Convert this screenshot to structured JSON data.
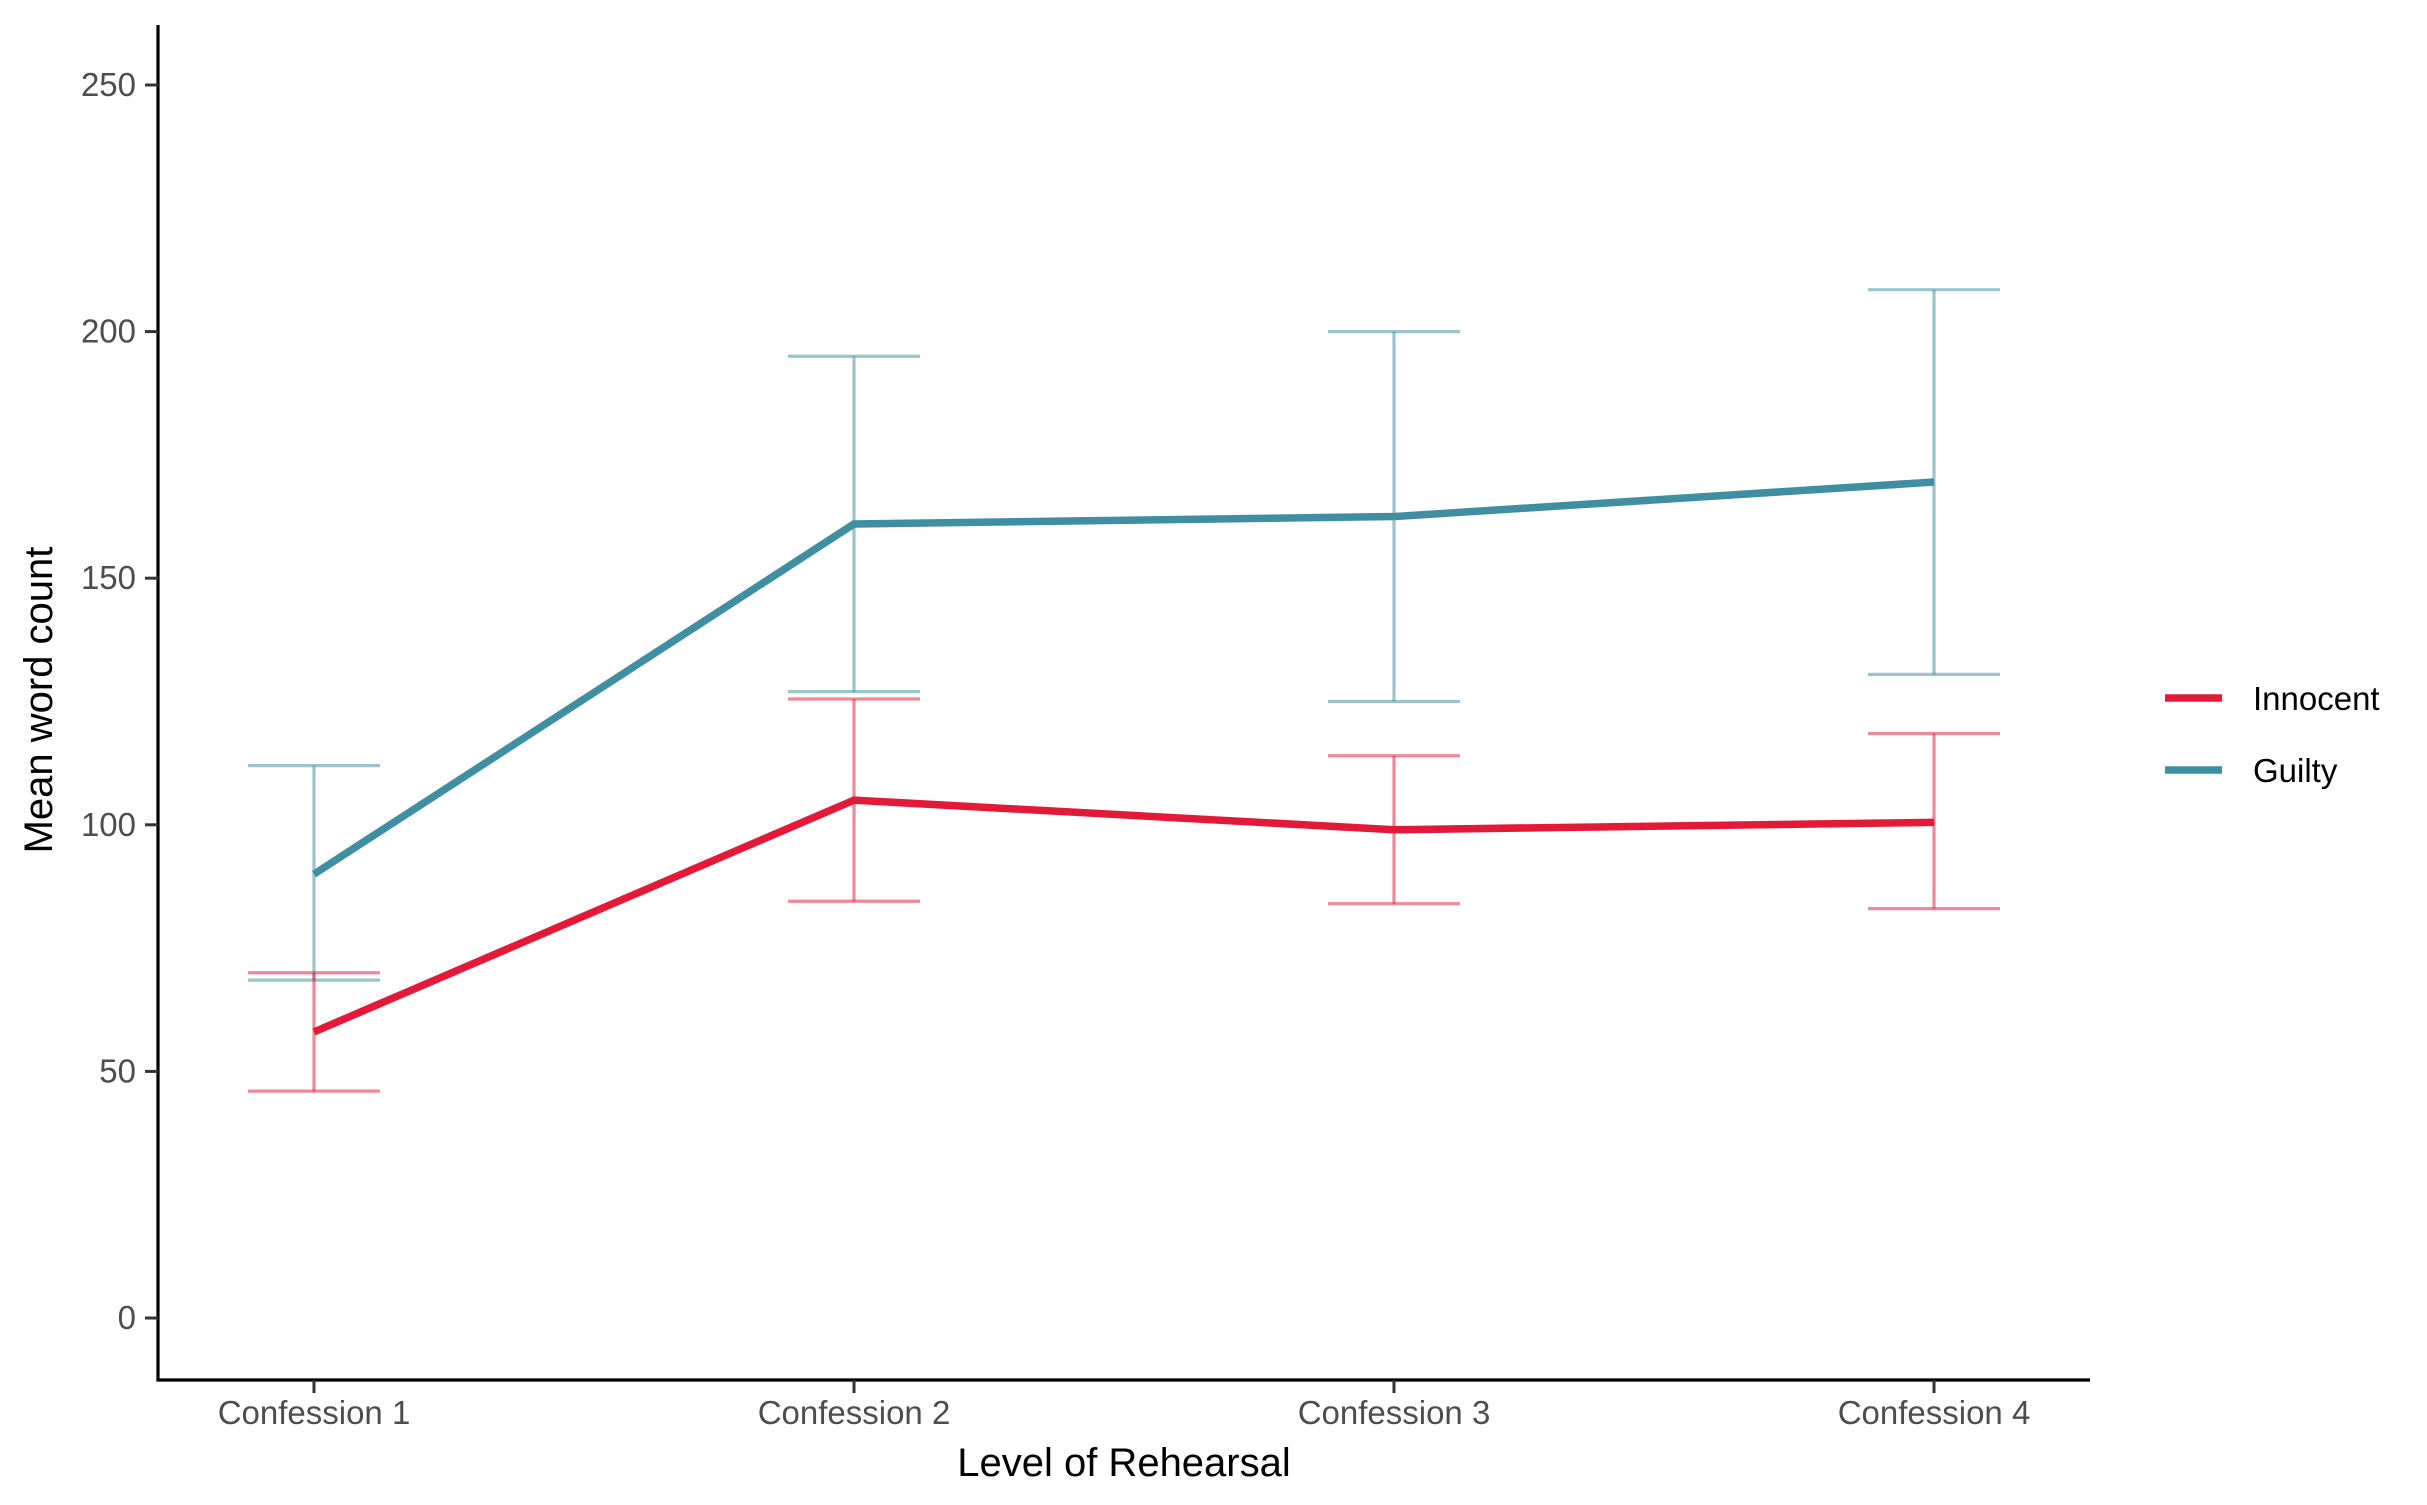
{
  "chart_data": {
    "type": "line",
    "xlabel": "Level of Rehearsal",
    "ylabel": "Mean word count",
    "categories": [
      "Confession 1",
      "Confession 2",
      "Confession 3",
      "Confession 4"
    ],
    "yticks": [
      0,
      50,
      100,
      150,
      200,
      250
    ],
    "ylim": [
      -12,
      262
    ],
    "grid": false,
    "legend_position": "right",
    "series": [
      {
        "name": "Innocent",
        "color": "#E31A37",
        "values": [
          58,
          105,
          99,
          100.5
        ],
        "error_low": [
          46,
          84.5,
          84,
          83
        ],
        "error_high": [
          70,
          125.5,
          114,
          118.5
        ]
      },
      {
        "name": "Guilty",
        "color": "#3F8EA1",
        "values": [
          90,
          161,
          162.5,
          169.5
        ],
        "error_low": [
          68.5,
          127,
          125,
          130.5
        ],
        "error_high": [
          112,
          195,
          200,
          208.5
        ]
      }
    ]
  }
}
